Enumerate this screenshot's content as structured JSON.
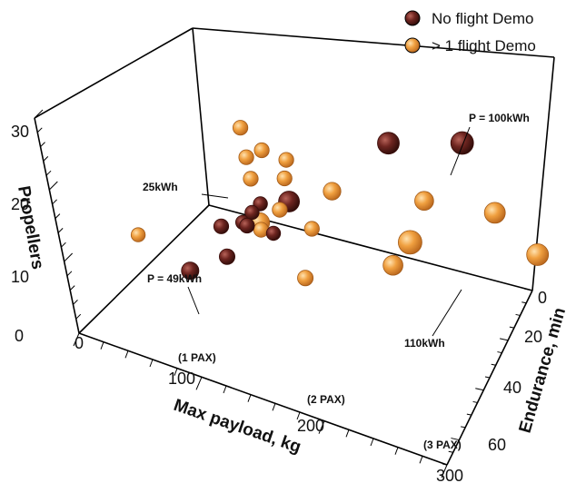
{
  "chart_data": {
    "type": "scatter",
    "dimensions": 3,
    "title": "",
    "xlabel": "Max payload, kg",
    "ylabel": "Endurance, min",
    "zlabel": "Propellers",
    "xlim": [
      0,
      300
    ],
    "ylim": [
      0,
      70
    ],
    "zlim": [
      0,
      30
    ],
    "x_ticks": [
      "0",
      "100",
      "200",
      "300"
    ],
    "y_ticks": [
      "0",
      "20",
      "40",
      "60"
    ],
    "z_ticks": [
      "0",
      "10",
      "20",
      "30"
    ],
    "x_markers": [
      "(1 PAX)",
      "(2 PAX)",
      "(3 PAX)"
    ],
    "legend": {
      "position": "top-right",
      "entries": [
        {
          "name": "No flight Demo",
          "color": "#5c1d17"
        },
        {
          "name": "> 1 flight Demo",
          "color": "#e8923a"
        }
      ]
    },
    "series": [
      {
        "name": "No flight Demo",
        "color": "#5c1d17",
        "points": [
          {
            "x": 60,
            "y": 25,
            "z": 6,
            "size": 49
          },
          {
            "x": 140,
            "y": 35,
            "z": 18,
            "size": 80
          },
          {
            "x": 185,
            "y": 62,
            "z": 22,
            "size": 90
          },
          {
            "x": 250,
            "y": 62,
            "z": 26,
            "size": 100
          },
          {
            "x": 105,
            "y": 20,
            "z": 12,
            "size": 35
          },
          {
            "x": 125,
            "y": 10,
            "z": 20,
            "size": 30
          },
          {
            "x": 125,
            "y": 20,
            "z": 18,
            "size": 25
          },
          {
            "x": 140,
            "y": 14,
            "z": 20,
            "size": 30
          },
          {
            "x": 140,
            "y": 22,
            "z": 21,
            "size": 25
          },
          {
            "x": 135,
            "y": 20,
            "z": 20,
            "size": 25
          },
          {
            "x": 150,
            "y": 20,
            "z": 18,
            "size": 25
          }
        ]
      },
      {
        "name": "> 1 flight Demo",
        "color": "#e8923a",
        "points": [
          {
            "x": 130,
            "y": 25,
            "z": 17,
            "size": 70
          },
          {
            "x": 220,
            "y": 35,
            "z": 14,
            "size": 70
          },
          {
            "x": 210,
            "y": 60,
            "z": 16,
            "size": 60
          },
          {
            "x": 270,
            "y": 60,
            "z": 18,
            "size": 80
          },
          {
            "x": 300,
            "y": 60,
            "z": 14,
            "size": 90
          },
          {
            "x": 170,
            "y": 20,
            "z": 13,
            "size": 35
          },
          {
            "x": 190,
            "y": 60,
            "z": 9,
            "size": 110
          },
          {
            "x": 150,
            "y": 15,
            "z": 34,
            "size": 30
          },
          {
            "x": 140,
            "y": 20,
            "z": 28,
            "size": 30
          },
          {
            "x": 145,
            "y": 25,
            "z": 28,
            "size": 30
          },
          {
            "x": 140,
            "y": 20,
            "z": 25,
            "size": 30
          },
          {
            "x": 155,
            "y": 30,
            "z": 26,
            "size": 30
          },
          {
            "x": 160,
            "y": 25,
            "z": 25,
            "size": 30
          },
          {
            "x": 130,
            "y": 25,
            "z": 16,
            "size": 30
          },
          {
            "x": 150,
            "y": 25,
            "z": 20,
            "size": 30
          },
          {
            "x": 165,
            "y": 30,
            "z": 17,
            "size": 30
          },
          {
            "x": 170,
            "y": 40,
            "z": 20,
            "size": 50
          },
          {
            "x": 70,
            "y": 0,
            "z": 18,
            "size": 25
          }
        ]
      }
    ],
    "annotations": [
      {
        "text": "P = 100kWh"
      },
      {
        "text": "25kWh"
      },
      {
        "text": "P = 49kWh"
      },
      {
        "text": "110kWh"
      }
    ]
  }
}
